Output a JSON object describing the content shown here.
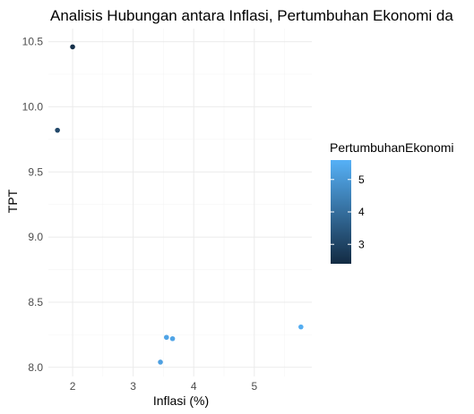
{
  "chart_data": {
    "type": "scatter",
    "title": "Analisis Hubungan antara Inflasi, Pertumbuhan Ekonomi da",
    "xlabel": "Inflasi (%)",
    "ylabel": "TPT",
    "xlim": [
      1.6,
      5.95
    ],
    "ylim": [
      7.93,
      10.6
    ],
    "x_ticks": [
      2,
      3,
      4,
      5
    ],
    "y_ticks": [
      8.0,
      8.5,
      9.0,
      9.5,
      10.0,
      10.5
    ],
    "grid": true,
    "legend": {
      "title": "PertumbuhanEkonomi",
      "position": "right",
      "type": "colorbar",
      "range": [
        2.4,
        5.6
      ],
      "ticks": [
        3,
        4,
        5
      ],
      "low_color": "#132B43",
      "high_color": "#56B1F7"
    },
    "points": [
      {
        "x": 2.0,
        "y": 10.46,
        "color_value": 2.5
      },
      {
        "x": 1.75,
        "y": 9.82,
        "color_value": 3.1
      },
      {
        "x": 3.55,
        "y": 8.23,
        "color_value": 5.3
      },
      {
        "x": 3.65,
        "y": 8.22,
        "color_value": 5.3
      },
      {
        "x": 3.45,
        "y": 8.04,
        "color_value": 5.2
      },
      {
        "x": 5.77,
        "y": 8.31,
        "color_value": 5.5
      }
    ]
  }
}
